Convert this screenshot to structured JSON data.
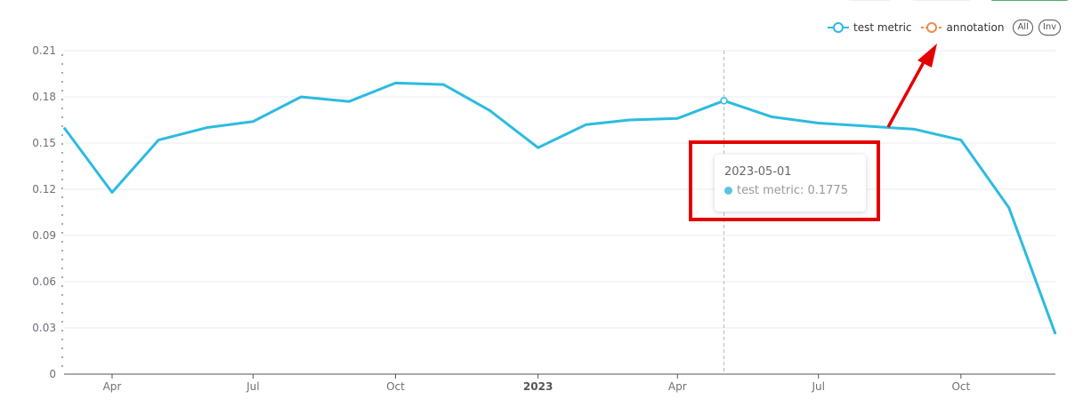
{
  "colors": {
    "series": "#2cbbe0",
    "annotation": "#f08a4b",
    "highlight_box": "#e40000",
    "arrow": "#e40000",
    "grid": "#e8ebf2",
    "axis": "#555555",
    "tick_text": "#6e7079"
  },
  "legend": {
    "items": [
      {
        "label": "test metric",
        "icon": "legend-line-circle-icon"
      },
      {
        "label": "annotation",
        "icon": "legend-line-circle-icon"
      }
    ],
    "select_all_label": "All",
    "inverse_label": "Inv"
  },
  "tooltip": {
    "date": "2023-05-01",
    "series_label": "test metric",
    "value": 0.1775,
    "text": "test metric: 0.1775"
  },
  "chart_data": {
    "type": "line",
    "title": "",
    "xlabel": "",
    "ylabel": "",
    "x": [
      "2022-03-01",
      "2022-04-01",
      "2022-05-01",
      "2022-06-01",
      "2022-07-01",
      "2022-08-01",
      "2022-09-01",
      "2022-10-01",
      "2022-11-01",
      "2022-12-01",
      "2023-01-01",
      "2023-02-01",
      "2023-03-01",
      "2023-04-01",
      "2023-05-01",
      "2023-06-01",
      "2023-07-01",
      "2023-08-01",
      "2023-09-01",
      "2023-10-01",
      "2023-11-01",
      "2023-12-01"
    ],
    "x_tick_labels": [
      "Apr",
      "Jul",
      "Oct",
      "2023",
      "Apr",
      "Jul",
      "Oct"
    ],
    "x_tick_dates": [
      "2022-04-01",
      "2022-07-01",
      "2022-10-01",
      "2023-01-01",
      "2023-04-01",
      "2023-07-01",
      "2023-10-01"
    ],
    "x_bold_ticks": [
      "2023"
    ],
    "y_ticks": [
      "0",
      "0.03",
      "0.06",
      "0.09",
      "0.12",
      "0.15",
      "0.18",
      "0.21"
    ],
    "ylim": [
      0,
      0.21
    ],
    "grid": true,
    "legend_position": "top-right",
    "series": [
      {
        "name": "test metric",
        "values": [
          0.16,
          0.118,
          0.152,
          0.16,
          0.164,
          0.18,
          0.177,
          0.189,
          0.188,
          0.171,
          0.147,
          0.162,
          0.165,
          0.166,
          0.1775,
          0.167,
          0.163,
          0.161,
          0.159,
          0.152,
          0.108,
          0.026
        ]
      }
    ],
    "highlighted_point": "2023-05-01"
  }
}
